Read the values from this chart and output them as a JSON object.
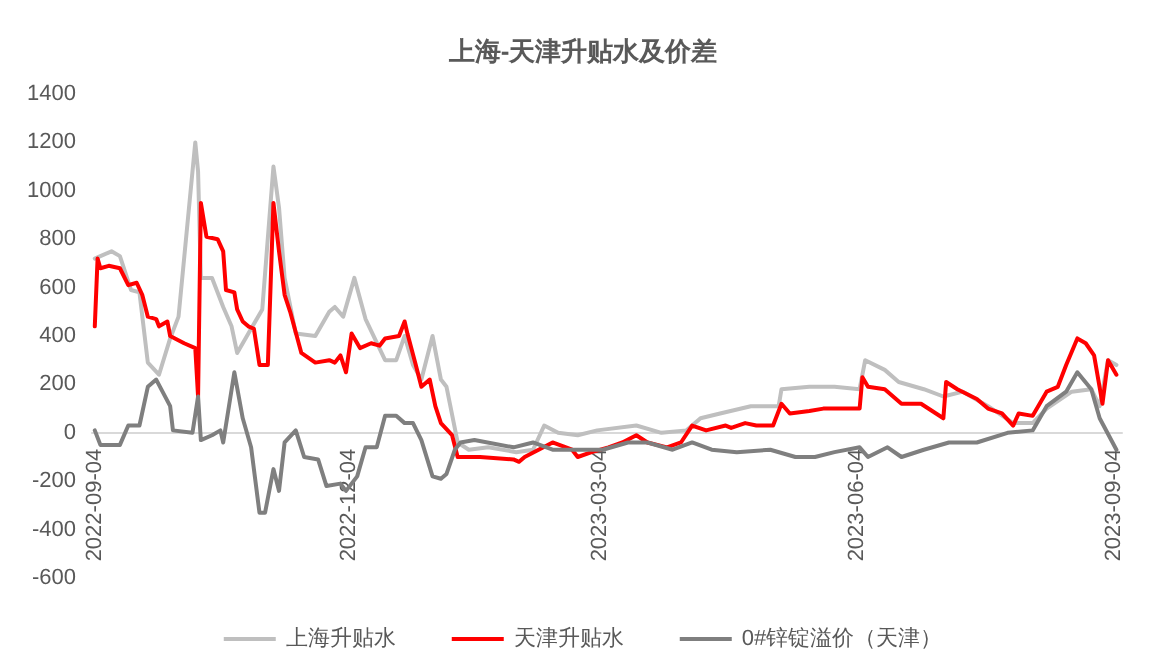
{
  "chart_data": {
    "type": "line",
    "title": "上海-天津升贴水及价差",
    "legend": "bottom",
    "grid": false,
    "marker": "none",
    "line_style": "solid",
    "xlim": [
      "2022-09-03",
      "2023-09-07"
    ],
    "xticks": [
      "2022-09-04",
      "2022-12-04",
      "2023-03-04",
      "2023-06-04",
      "2023-09-04"
    ],
    "ylim": [
      -600,
      1400
    ],
    "yticks": [
      -600,
      -400,
      -200,
      0,
      200,
      400,
      600,
      800,
      1000,
      1200,
      1400
    ],
    "series": [
      {
        "name": "上海升贴水",
        "color": "#bfbfbf",
        "x": [
          "2022-09-04",
          "2022-09-06",
          "2022-09-10",
          "2022-09-13",
          "2022-09-17",
          "2022-09-20",
          "2022-09-23",
          "2022-09-27",
          "2022-10-01",
          "2022-10-04",
          "2022-10-10",
          "2022-10-11",
          "2022-10-12",
          "2022-10-16",
          "2022-10-20",
          "2022-10-23",
          "2022-10-25",
          "2022-10-30",
          "2022-11-03",
          "2022-11-07",
          "2022-11-09",
          "2022-11-11",
          "2022-11-15",
          "2022-11-22",
          "2022-11-27",
          "2022-11-29",
          "2022-12-02",
          "2022-12-06",
          "2022-12-10",
          "2022-12-17",
          "2022-12-21",
          "2022-12-24",
          "2022-12-27",
          "2022-12-30",
          "2023-01-03",
          "2023-01-06",
          "2023-01-08",
          "2023-01-12",
          "2023-01-16",
          "2023-01-23",
          "2023-02-02",
          "2023-02-08",
          "2023-02-12",
          "2023-02-17",
          "2023-02-24",
          "2023-03-03",
          "2023-03-17",
          "2023-03-26",
          "2023-04-04",
          "2023-04-09",
          "2023-04-16",
          "2023-04-27",
          "2023-05-07",
          "2023-05-08",
          "2023-05-18",
          "2023-05-27",
          "2023-06-05",
          "2023-06-07",
          "2023-06-14",
          "2023-06-19",
          "2023-06-28",
          "2023-07-05",
          "2023-07-12",
          "2023-07-21",
          "2023-07-30",
          "2023-08-06",
          "2023-08-11",
          "2023-08-20",
          "2023-08-27",
          "2023-08-30",
          "2023-09-02",
          "2023-09-05"
        ],
        "values": [
          720,
          730,
          750,
          730,
          590,
          580,
          290,
          240,
          390,
          480,
          1200,
          1080,
          640,
          640,
          520,
          440,
          330,
          430,
          510,
          1100,
          930,
          640,
          410,
          400,
          500,
          520,
          480,
          640,
          470,
          300,
          300,
          400,
          280,
          220,
          400,
          220,
          190,
          -40,
          -70,
          -60,
          -80,
          -70,
          30,
          0,
          -10,
          10,
          30,
          0,
          10,
          60,
          80,
          110,
          110,
          180,
          190,
          190,
          180,
          300,
          260,
          210,
          180,
          150,
          170,
          110,
          40,
          40,
          100,
          170,
          180,
          110,
          300,
          280
        ]
      },
      {
        "name": "天津升贴水",
        "color": "#ff0000",
        "x": [
          "2022-09-04",
          "2022-09-05",
          "2022-09-06",
          "2022-09-09",
          "2022-09-13",
          "2022-09-16",
          "2022-09-19",
          "2022-09-21",
          "2022-09-23",
          "2022-09-26",
          "2022-09-27",
          "2022-09-30",
          "2022-10-01",
          "2022-10-06",
          "2022-10-10",
          "2022-10-11",
          "2022-10-12",
          "2022-10-14",
          "2022-10-18",
          "2022-10-20",
          "2022-10-21",
          "2022-10-24",
          "2022-10-25",
          "2022-10-27",
          "2022-10-29",
          "2022-10-31",
          "2022-11-02",
          "2022-11-05",
          "2022-11-07",
          "2022-11-09",
          "2022-11-11",
          "2022-11-13",
          "2022-11-17",
          "2022-11-22",
          "2022-11-27",
          "2022-11-29",
          "2022-12-01",
          "2022-12-03",
          "2022-12-05",
          "2022-12-08",
          "2022-12-12",
          "2022-12-15",
          "2022-12-17",
          "2022-12-22",
          "2022-12-24",
          "2022-12-25",
          "2022-12-28",
          "2022-12-30",
          "2023-01-02",
          "2023-01-04",
          "2023-01-06",
          "2023-01-10",
          "2023-01-12",
          "2023-01-20",
          "2023-02-01",
          "2023-02-03",
          "2023-02-05",
          "2023-02-10",
          "2023-02-15",
          "2023-02-22",
          "2023-02-24",
          "2023-03-01",
          "2023-03-07",
          "2023-03-12",
          "2023-03-17",
          "2023-03-21",
          "2023-03-28",
          "2023-04-02",
          "2023-04-06",
          "2023-04-11",
          "2023-04-18",
          "2023-04-20",
          "2023-04-25",
          "2023-04-29",
          "2023-05-05",
          "2023-05-08",
          "2023-05-11",
          "2023-05-18",
          "2023-05-23",
          "2023-06-05",
          "2023-06-06",
          "2023-06-08",
          "2023-06-14",
          "2023-06-20",
          "2023-06-27",
          "2023-07-05",
          "2023-07-06",
          "2023-07-10",
          "2023-07-17",
          "2023-07-21",
          "2023-07-26",
          "2023-07-30",
          "2023-08-01",
          "2023-08-06",
          "2023-08-11",
          "2023-08-15",
          "2023-08-18",
          "2023-08-22",
          "2023-08-25",
          "2023-08-28",
          "2023-08-31",
          "2023-09-02",
          "2023-09-05"
        ],
        "values": [
          440,
          720,
          680,
          690,
          680,
          610,
          620,
          570,
          480,
          470,
          440,
          460,
          400,
          370,
          350,
          150,
          950,
          810,
          800,
          750,
          590,
          580,
          510,
          460,
          440,
          430,
          280,
          280,
          950,
          750,
          570,
          500,
          330,
          290,
          300,
          290,
          320,
          250,
          410,
          350,
          370,
          360,
          390,
          400,
          460,
          410,
          280,
          190,
          220,
          110,
          40,
          -10,
          -100,
          -100,
          -110,
          -120,
          -100,
          -70,
          -40,
          -70,
          -100,
          -80,
          -60,
          -40,
          -10,
          -40,
          -60,
          -40,
          30,
          10,
          30,
          20,
          40,
          30,
          30,
          120,
          80,
          90,
          100,
          100,
          230,
          190,
          180,
          120,
          120,
          60,
          210,
          180,
          140,
          100,
          80,
          30,
          80,
          70,
          170,
          190,
          280,
          390,
          370,
          320,
          120,
          300,
          240
        ]
      },
      {
        "name": "0#锌锭溢价（天津）",
        "color": "#7f7f7f",
        "x": [
          "2022-09-04",
          "2022-09-06",
          "2022-09-13",
          "2022-09-16",
          "2022-09-20",
          "2022-09-23",
          "2022-09-26",
          "2022-10-01",
          "2022-10-02",
          "2022-10-09",
          "2022-10-11",
          "2022-10-12",
          "2022-10-16",
          "2022-10-19",
          "2022-10-20",
          "2022-10-24",
          "2022-10-27",
          "2022-10-30",
          "2022-11-02",
          "2022-11-04",
          "2022-11-07",
          "2022-11-09",
          "2022-11-11",
          "2022-11-15",
          "2022-11-18",
          "2022-11-23",
          "2022-11-26",
          "2022-12-01",
          "2022-12-03",
          "2022-12-07",
          "2022-12-10",
          "2022-12-14",
          "2022-12-17",
          "2022-12-21",
          "2022-12-24",
          "2022-12-27",
          "2022-12-30",
          "2023-01-03",
          "2023-01-06",
          "2023-01-08",
          "2023-01-11",
          "2023-01-13",
          "2023-01-18",
          "2023-02-01",
          "2023-02-08",
          "2023-02-15",
          "2023-03-05",
          "2023-03-14",
          "2023-03-21",
          "2023-03-30",
          "2023-04-06",
          "2023-04-13",
          "2023-04-22",
          "2023-05-04",
          "2023-05-13",
          "2023-05-20",
          "2023-05-27",
          "2023-06-05",
          "2023-06-08",
          "2023-06-15",
          "2023-06-20",
          "2023-06-28",
          "2023-07-07",
          "2023-07-17",
          "2023-07-28",
          "2023-08-06",
          "2023-08-11",
          "2023-08-18",
          "2023-08-22",
          "2023-08-27",
          "2023-08-30",
          "2023-09-05"
        ],
        "values": [
          10,
          -50,
          -50,
          30,
          30,
          190,
          220,
          110,
          10,
          0,
          150,
          -30,
          -10,
          10,
          -40,
          250,
          60,
          -60,
          -330,
          -330,
          -150,
          -240,
          -40,
          10,
          -100,
          -110,
          -220,
          -210,
          -240,
          -180,
          -60,
          -60,
          70,
          70,
          40,
          40,
          -30,
          -180,
          -190,
          -170,
          -70,
          -40,
          -30,
          -60,
          -40,
          -70,
          -70,
          -40,
          -40,
          -70,
          -40,
          -70,
          -80,
          -70,
          -100,
          -100,
          -80,
          -60,
          -100,
          -60,
          -100,
          -70,
          -40,
          -40,
          0,
          10,
          110,
          170,
          250,
          180,
          60,
          -70
        ]
      }
    ]
  }
}
